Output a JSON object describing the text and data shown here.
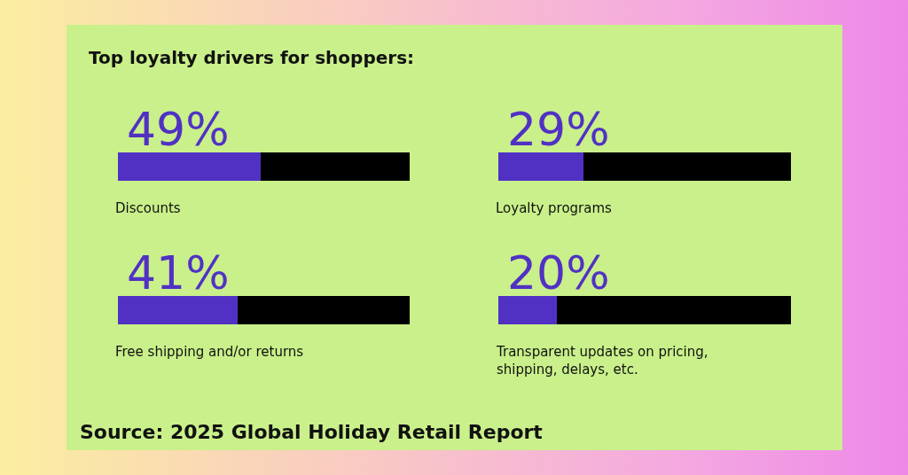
{
  "chart_data": [
    {
      "type": "bar",
      "orientation": "horizontal",
      "stacked": true,
      "title": "Top loyalty drivers for shoppers:",
      "categories": [
        "Discounts",
        "Free shipping and/or returns"
      ],
      "series": [
        {
          "color": "#5131c4",
          "values": [
            49,
            41
          ],
          "value_labels": [
            "49%",
            "41%"
          ]
        },
        {
          "color": "#000000",
          "values": [
            51,
            59
          ]
        }
      ],
      "xlim": [
        0,
        100
      ],
      "tick_labels": false,
      "annotations": [
        "Source: 2025 Global Holiday Retail Report"
      ]
    },
    {
      "type": "bar",
      "orientation": "horizontal",
      "stacked": true,
      "categories": [
        "Loyalty programs",
        "Transparent updates on pricing, shipping, delays, etc."
      ],
      "series": [
        {
          "color": "#5131c4",
          "values": [
            29,
            20
          ],
          "value_labels": [
            "29%",
            "20%"
          ]
        },
        {
          "color": "#000000",
          "values": [
            71,
            80
          ]
        }
      ],
      "xlim": [
        0,
        100
      ],
      "tick_labels": false
    }
  ]
}
